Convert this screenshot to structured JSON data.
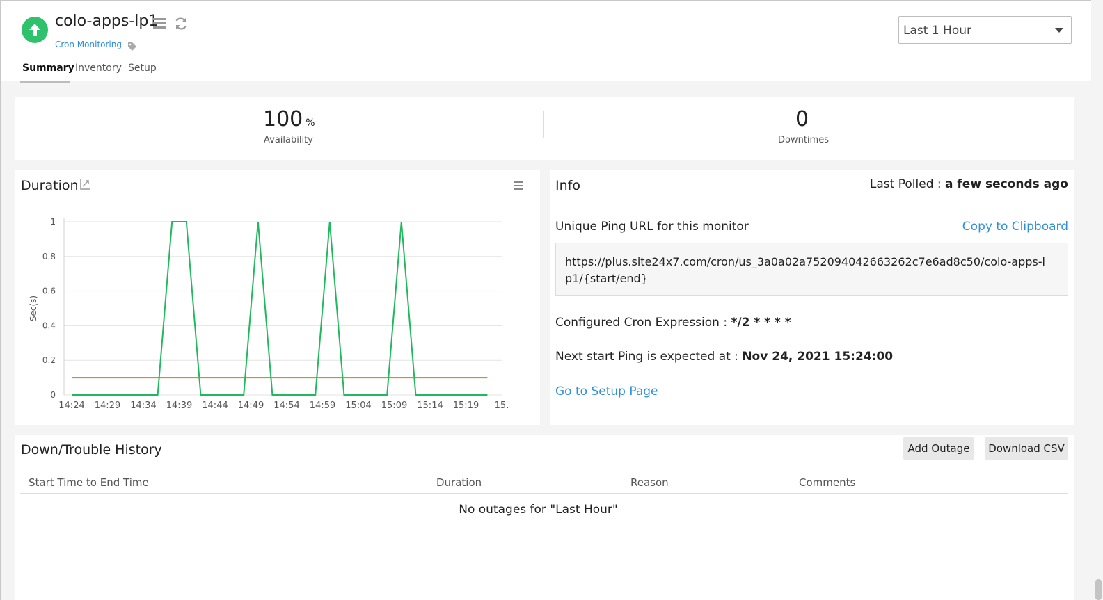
{
  "header": {
    "monitor_name": "colo-apps-lp1",
    "monitor_type": "Cron Monitoring",
    "status_color": "#2ec26d",
    "tabs": [
      {
        "label": "Summary",
        "active": true
      },
      {
        "label": "Inventory",
        "active": false
      },
      {
        "label": "Setup",
        "active": false
      }
    ],
    "time_range": "Last 1 Hour"
  },
  "stats": {
    "availability_value": "100",
    "availability_unit": "%",
    "availability_label": "Availability",
    "downtimes_value": "0",
    "downtimes_label": "Downtimes"
  },
  "duration_panel": {
    "title": "Duration"
  },
  "chart_data": {
    "type": "line",
    "ylabel": "Sec(s)",
    "ylim": [
      0,
      1
    ],
    "yticks": [
      "0",
      "0.2",
      "0.4",
      "0.6",
      "0.8",
      "1"
    ],
    "xticks": [
      "14:24",
      "14:29",
      "14:34",
      "14:39",
      "14:44",
      "14:49",
      "14:54",
      "14:59",
      "15:04",
      "15:09",
      "15:14",
      "15:19",
      "15."
    ],
    "x": [
      "14:24",
      "14:26",
      "14:28",
      "14:30",
      "14:32",
      "14:34",
      "14:36",
      "14:38",
      "14:40",
      "14:42",
      "14:44",
      "14:46",
      "14:48",
      "14:50",
      "14:52",
      "14:54",
      "14:56",
      "14:58",
      "15:00",
      "15:02",
      "15:04",
      "15:06",
      "15:08",
      "15:10",
      "15:12",
      "15:14",
      "15:16",
      "15:18",
      "15:20",
      "15:22"
    ],
    "series": [
      {
        "color": "#21b85e",
        "values": [
          0,
          0,
          0,
          0,
          0,
          0,
          0,
          1,
          1,
          0,
          0,
          0,
          0,
          1,
          0,
          0,
          0,
          0,
          1,
          0,
          0,
          0,
          0,
          1,
          0,
          0,
          0,
          0,
          0,
          0
        ]
      },
      {
        "color": "#d9731f",
        "values": [
          0.1,
          0.1,
          0.1,
          0.1,
          0.1,
          0.1,
          0.1,
          0.1,
          0.1,
          0.1,
          0.1,
          0.1,
          0.1,
          0.1,
          0.1,
          0.1,
          0.1,
          0.1,
          0.1,
          0.1,
          0.1,
          0.1,
          0.1,
          0.1,
          0.1,
          0.1,
          0.1,
          0.1,
          0.1,
          0.1
        ]
      }
    ],
    "grid": true
  },
  "info": {
    "title": "Info",
    "last_polled_label": "Last Polled : ",
    "last_polled_value": "a few seconds ago",
    "ping_url_label": "Unique Ping URL for this monitor",
    "copy_label": "Copy to Clipboard",
    "ping_url": "https://plus.site24x7.com/cron/us_3a0a02a752094042663262c7e6ad8c50/colo-apps-lp1/{start/end}",
    "cron_label": "Configured Cron Expression : ",
    "cron_value": "*/2 * * * *",
    "next_ping_label": "Next start Ping is expected at : ",
    "next_ping_value": "Nov 24, 2021 15:24:00",
    "setup_link": "Go to Setup Page"
  },
  "history": {
    "title": "Down/Trouble History",
    "add_outage": "Add Outage",
    "download_csv": "Download CSV",
    "columns": [
      "Start Time to End Time",
      "Duration",
      "Reason",
      "Comments"
    ],
    "empty_message": "No outages for \"Last Hour\""
  }
}
